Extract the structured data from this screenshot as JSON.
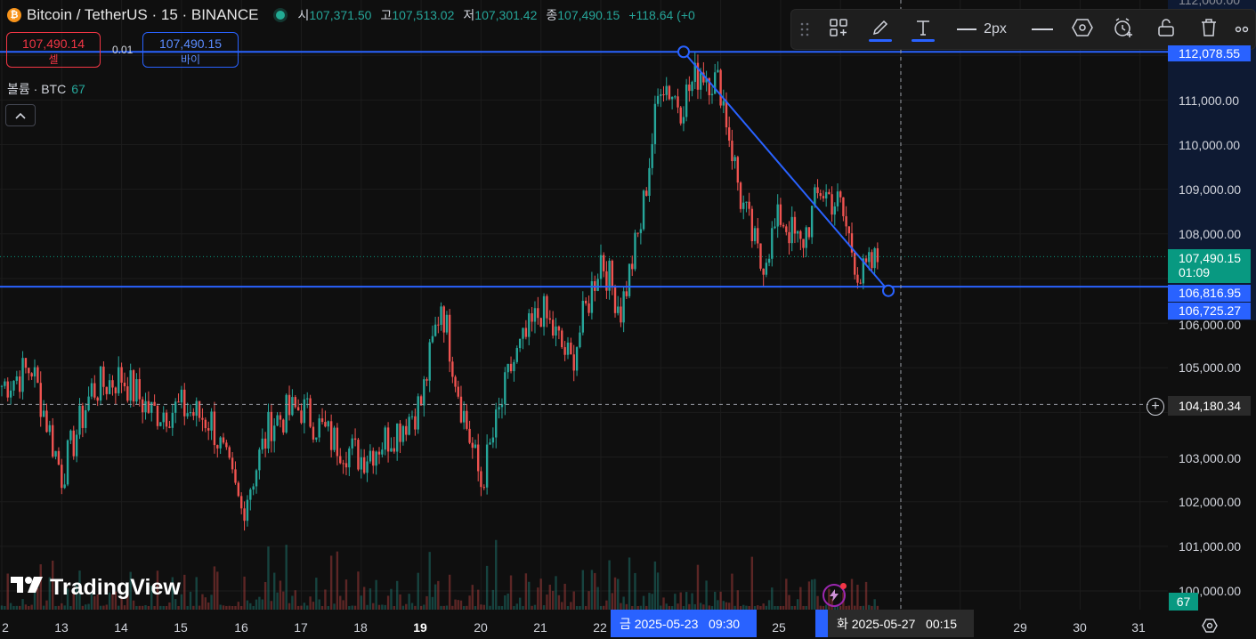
{
  "header": {
    "coin_badge": "₿",
    "symbol": "Bitcoin / TetherUS · 15 · BINANCE",
    "open_label": "시",
    "open": "107,371.50",
    "high_label": "고",
    "high": "107,513.02",
    "low_label": "저",
    "low": "107,301.42",
    "close_label": "종",
    "close": "107,490.15",
    "change": "+118.64 (+0"
  },
  "trade": {
    "sell_price": "107,490.14",
    "sell_label": "셀",
    "spread": "0.01",
    "buy_price": "107,490.15",
    "buy_label": "바이"
  },
  "volume_indicator": {
    "label": "볼륨 · BTC",
    "value": "67",
    "collapse_icon": "chevron-up-icon"
  },
  "toolbar": {
    "line_width_label": "2px",
    "icons": [
      "drag-handle-icon",
      "templates-icon",
      "pencil-icon",
      "text-icon",
      "line-style-icon",
      "hexagon-icon",
      "alert-icon",
      "lock-icon",
      "trash-icon",
      "more-icon"
    ]
  },
  "price_axis": {
    "labels": [
      "112,078.55",
      "111,000.00",
      "110,000.00",
      "109,000.00",
      "108,000.00",
      "106,000.00",
      "105,000.00",
      "103,000.00",
      "102,000.00",
      "101,000.00",
      "100,000.00"
    ],
    "top_cut_label": "112,000.00",
    "current_price": "107,490.15",
    "countdown": "01:09",
    "line_level_1": "106,816.95",
    "line_level_2": "106,725.27",
    "crosshair_price": "104,180.34",
    "volume_value": "67"
  },
  "time_axis": {
    "ticks": [
      "2",
      "13",
      "14",
      "15",
      "16",
      "17",
      "18",
      "19",
      "20",
      "21",
      "22",
      "25",
      "29",
      "30",
      "31"
    ],
    "crosshair_date": "금 2025-05-23   09:30",
    "drawing_date": "화 2025-05-27   00:15"
  },
  "branding": {
    "logo_text": "TradingView"
  },
  "colors": {
    "up": "#26a69a",
    "down": "#ef5350",
    "drawing": "#2962ff",
    "background": "#0f0f0f"
  },
  "chart_data": {
    "type": "candlestick",
    "instrument": "Bitcoin / TetherUS",
    "interval": "15",
    "exchange": "BINANCE",
    "y_range": [
      99800,
      112200
    ],
    "x_range": [
      "2025-05-12",
      "2025-05-31"
    ],
    "last_close": 107490.15,
    "horizontal_lines": [
      112078.55,
      106816.95
    ],
    "trend_line": {
      "from": {
        "date": "2025-05-23",
        "price": 112078.55
      },
      "to": {
        "date": "2025-05-27",
        "price": 106725.27
      }
    },
    "crosshair": {
      "date": "2025-05-23 09:30",
      "price": 104180.34
    },
    "price_path": [
      {
        "date": "2025-05-12",
        "price": 104600
      },
      {
        "date": "2025-05-12",
        "price": 105000
      },
      {
        "date": "2025-05-13",
        "price": 102600
      },
      {
        "date": "2025-05-13",
        "price": 104500
      },
      {
        "date": "2025-05-14",
        "price": 104800
      },
      {
        "date": "2025-05-14",
        "price": 104000
      },
      {
        "date": "2025-05-15",
        "price": 104100
      },
      {
        "date": "2025-05-15",
        "price": 103800
      },
      {
        "date": "2025-05-16",
        "price": 101800
      },
      {
        "date": "2025-05-16",
        "price": 103800
      },
      {
        "date": "2025-05-17",
        "price": 104100
      },
      {
        "date": "2025-05-17",
        "price": 103400
      },
      {
        "date": "2025-05-18",
        "price": 103000
      },
      {
        "date": "2025-05-18",
        "price": 103500
      },
      {
        "date": "2025-05-19",
        "price": 104200
      },
      {
        "date": "2025-05-19",
        "price": 106500
      },
      {
        "date": "2025-05-19",
        "price": 104200
      },
      {
        "date": "2025-05-20",
        "price": 102400
      },
      {
        "date": "2025-05-20",
        "price": 105000
      },
      {
        "date": "2025-05-21",
        "price": 106300
      },
      {
        "date": "2025-05-21",
        "price": 105100
      },
      {
        "date": "2025-05-22",
        "price": 107500
      },
      {
        "date": "2025-05-22",
        "price": 106300
      },
      {
        "date": "2025-05-22",
        "price": 108200
      },
      {
        "date": "2025-05-23",
        "price": 111500
      },
      {
        "date": "2025-05-23",
        "price": 110900
      },
      {
        "date": "2025-05-23",
        "price": 111700
      },
      {
        "date": "2025-05-24",
        "price": 111300
      },
      {
        "date": "2025-05-24",
        "price": 108800
      },
      {
        "date": "2025-05-24",
        "price": 107300
      },
      {
        "date": "2025-05-25",
        "price": 108400
      },
      {
        "date": "2025-05-25",
        "price": 107700
      },
      {
        "date": "2025-05-25",
        "price": 109000
      },
      {
        "date": "2025-05-26",
        "price": 108600
      },
      {
        "date": "2025-05-26",
        "price": 107000
      },
      {
        "date": "2025-05-26",
        "price": 107490
      }
    ]
  }
}
